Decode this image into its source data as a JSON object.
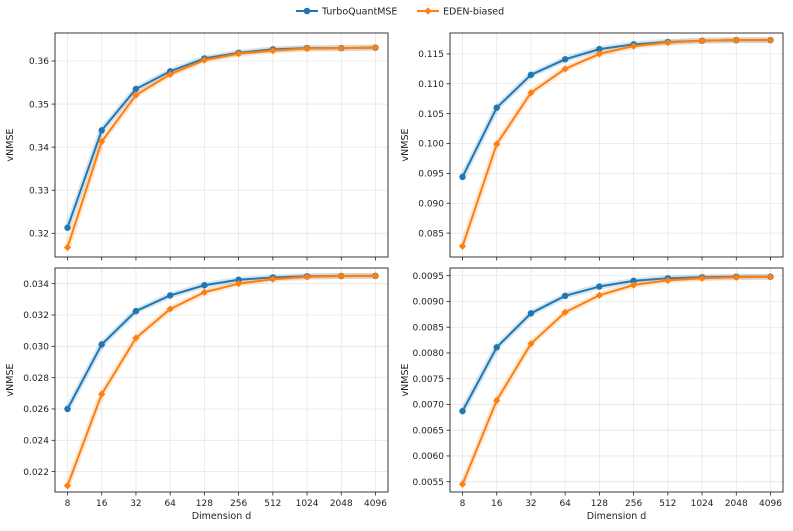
{
  "legend": {
    "items": [
      {
        "label": "TurboQuantMSE",
        "color": "#1f77b4",
        "marker": "circle"
      },
      {
        "label": "EDEN-biased",
        "color": "#ff7f0e",
        "marker": "diamond"
      }
    ]
  },
  "chart_data": [
    {
      "type": "line",
      "xscale": "log2",
      "x": [
        8,
        16,
        32,
        64,
        128,
        256,
        512,
        1024,
        2048,
        4096
      ],
      "xtick_labels": [
        "8",
        "16",
        "32",
        "64",
        "128",
        "256",
        "512",
        "1024",
        "2048",
        "4096"
      ],
      "xlabel": "",
      "ylabel": "vNMSE",
      "ylim": [
        0.3145,
        0.3665
      ],
      "yticks": [
        0.32,
        0.33,
        0.34,
        0.35,
        0.36
      ],
      "ytick_labels": [
        "0.32",
        "0.33",
        "0.34",
        "0.35",
        "0.36"
      ],
      "grid": true,
      "series": [
        {
          "name": "TurboQuantMSE",
          "color": "#1f77b4",
          "values": [
            0.3213,
            0.3439,
            0.3535,
            0.3576,
            0.3606,
            0.3619,
            0.3627,
            0.363,
            0.363,
            0.3631
          ]
        },
        {
          "name": "EDEN-biased",
          "color": "#ff7f0e",
          "values": [
            0.3167,
            0.3413,
            0.3521,
            0.3569,
            0.3602,
            0.3617,
            0.3624,
            0.3629,
            0.363,
            0.3631
          ]
        }
      ]
    },
    {
      "type": "line",
      "xscale": "log2",
      "x": [
        8,
        16,
        32,
        64,
        128,
        256,
        512,
        1024,
        2048,
        4096
      ],
      "xtick_labels": [
        "8",
        "16",
        "32",
        "64",
        "128",
        "256",
        "512",
        "1024",
        "2048",
        "4096"
      ],
      "xlabel": "",
      "ylabel": "vNMSE",
      "ylim": [
        0.081,
        0.1185
      ],
      "yticks": [
        0.085,
        0.09,
        0.095,
        0.1,
        0.105,
        0.11,
        0.115
      ],
      "ytick_labels": [
        "0.085",
        "0.090",
        "0.095",
        "0.100",
        "0.105",
        "0.110",
        "0.115"
      ],
      "grid": true,
      "series": [
        {
          "name": "TurboQuantMSE",
          "color": "#1f77b4",
          "values": [
            0.0944,
            0.106,
            0.1115,
            0.1141,
            0.1158,
            0.1166,
            0.117,
            0.1172,
            0.1173,
            0.1173
          ]
        },
        {
          "name": "EDEN-biased",
          "color": "#ff7f0e",
          "values": [
            0.0828,
            0.0999,
            0.1085,
            0.1125,
            0.115,
            0.1163,
            0.1169,
            0.1172,
            0.1173,
            0.1173
          ]
        }
      ]
    },
    {
      "type": "line",
      "xscale": "log2",
      "x": [
        8,
        16,
        32,
        64,
        128,
        256,
        512,
        1024,
        2048,
        4096
      ],
      "xtick_labels": [
        "8",
        "16",
        "32",
        "64",
        "128",
        "256",
        "512",
        "1024",
        "2048",
        "4096"
      ],
      "xlabel": "Dimension d",
      "ylabel": "vNMSE",
      "ylim": [
        0.0207,
        0.035
      ],
      "yticks": [
        0.022,
        0.024,
        0.026,
        0.028,
        0.03,
        0.032,
        0.034
      ],
      "ytick_labels": [
        "0.022",
        "0.024",
        "0.026",
        "0.028",
        "0.030",
        "0.032",
        "0.034"
      ],
      "grid": true,
      "series": [
        {
          "name": "TurboQuantMSE",
          "color": "#1f77b4",
          "values": [
            0.026,
            0.03012,
            0.03225,
            0.03325,
            0.0339,
            0.03425,
            0.0344,
            0.03447,
            0.03449,
            0.0345
          ]
        },
        {
          "name": "EDEN-biased",
          "color": "#ff7f0e",
          "values": [
            0.0211,
            0.02695,
            0.03053,
            0.03238,
            0.03345,
            0.034,
            0.03428,
            0.03443,
            0.03449,
            0.0345
          ]
        }
      ]
    },
    {
      "type": "line",
      "xscale": "log2",
      "x": [
        8,
        16,
        32,
        64,
        128,
        256,
        512,
        1024,
        2048,
        4096
      ],
      "xtick_labels": [
        "8",
        "16",
        "32",
        "64",
        "128",
        "256",
        "512",
        "1024",
        "2048",
        "4096"
      ],
      "xlabel": "Dimension d",
      "ylabel": "vNMSE",
      "ylim": [
        0.0053,
        0.00965
      ],
      "yticks": [
        0.0055,
        0.006,
        0.0065,
        0.007,
        0.0075,
        0.008,
        0.0085,
        0.009,
        0.0095
      ],
      "ytick_labels": [
        "0.0055",
        "0.0060",
        "0.0065",
        "0.0070",
        "0.0075",
        "0.0080",
        "0.0085",
        "0.0090",
        "0.0095"
      ],
      "grid": true,
      "series": [
        {
          "name": "TurboQuantMSE",
          "color": "#1f77b4",
          "values": [
            0.00687,
            0.00811,
            0.00877,
            0.00911,
            0.00929,
            0.0094,
            0.00945,
            0.00947,
            0.00948,
            0.00948
          ]
        },
        {
          "name": "EDEN-biased",
          "color": "#ff7f0e",
          "values": [
            0.00545,
            0.00708,
            0.00818,
            0.00879,
            0.00912,
            0.00932,
            0.00941,
            0.00945,
            0.00947,
            0.00948
          ]
        }
      ]
    }
  ]
}
